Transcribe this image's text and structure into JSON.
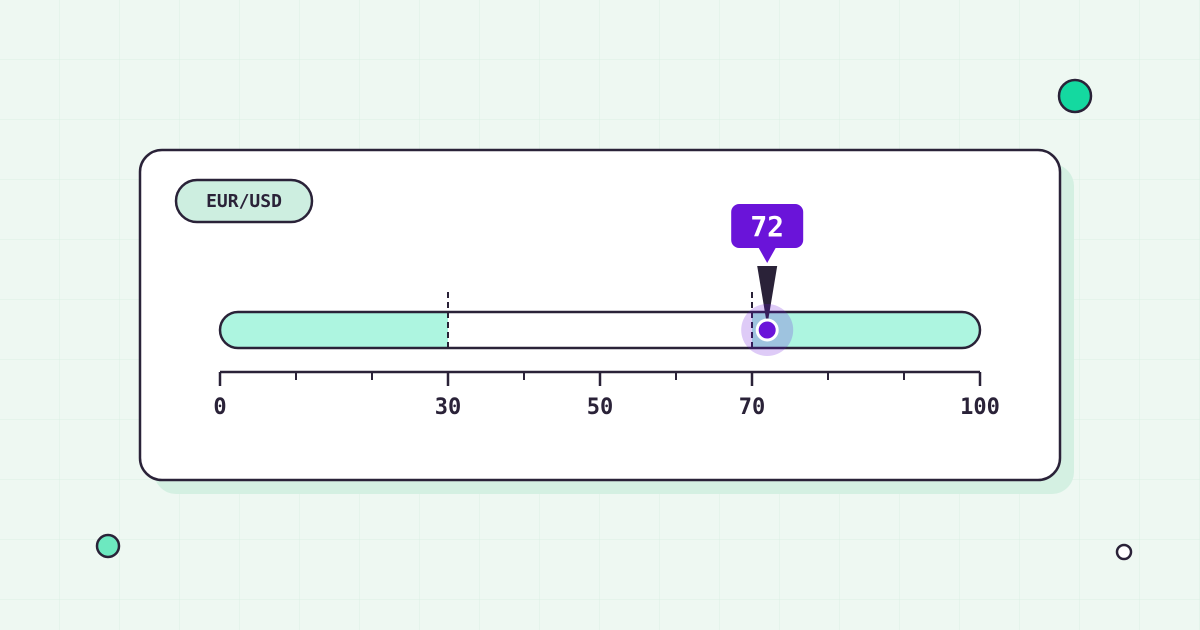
{
  "chart_data": {
    "type": "slider",
    "title": "EUR/USD",
    "value": 72,
    "color": "#6a14d9",
    "zone_color": "#adf5e0",
    "thresholds": [
      30,
      70
    ],
    "xlim": [
      0,
      100
    ],
    "xticks": [
      0,
      30,
      50,
      70,
      100
    ],
    "minor_xticks": [
      10,
      20,
      40,
      60,
      80,
      90
    ]
  }
}
